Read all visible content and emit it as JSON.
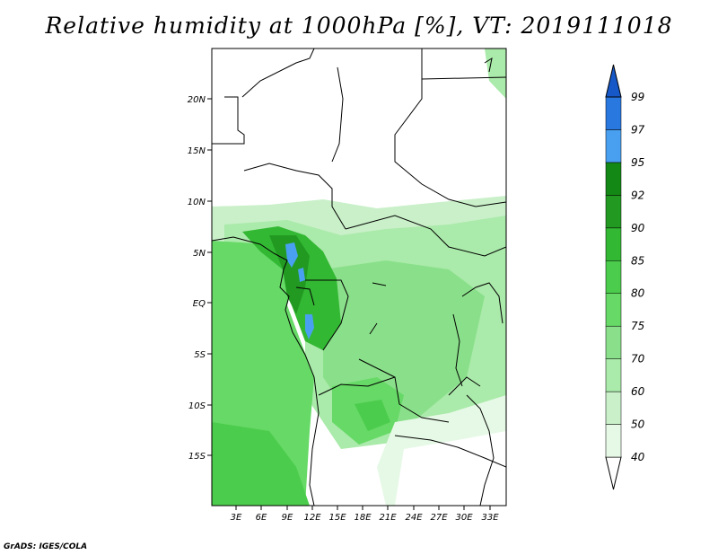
{
  "title": "Relative humidity at 1000hPa [%], VT: 2019111018",
  "footer": "GrADS: IGES/COLA",
  "map": {
    "lat_labels": [
      "20N",
      "15N",
      "10N",
      "5N",
      "EQ",
      "5S",
      "10S",
      "15S"
    ],
    "lon_labels": [
      "3E",
      "6E",
      "9E",
      "12E",
      "15E",
      "18E",
      "21E",
      "24E",
      "27E",
      "30E",
      "33E"
    ]
  },
  "colorbar": {
    "levels": [
      "40",
      "50",
      "60",
      "70",
      "75",
      "80",
      "85",
      "90",
      "92",
      "95",
      "97",
      "99"
    ],
    "colors": [
      "#ffffff",
      "#e6f9e6",
      "#c9f0c9",
      "#aaeaaa",
      "#8ae08a",
      "#66d966",
      "#4ccc4c",
      "#33b833",
      "#229a22",
      "#148814",
      "#4aa0f0",
      "#2878e0",
      "#1658c8"
    ]
  }
}
